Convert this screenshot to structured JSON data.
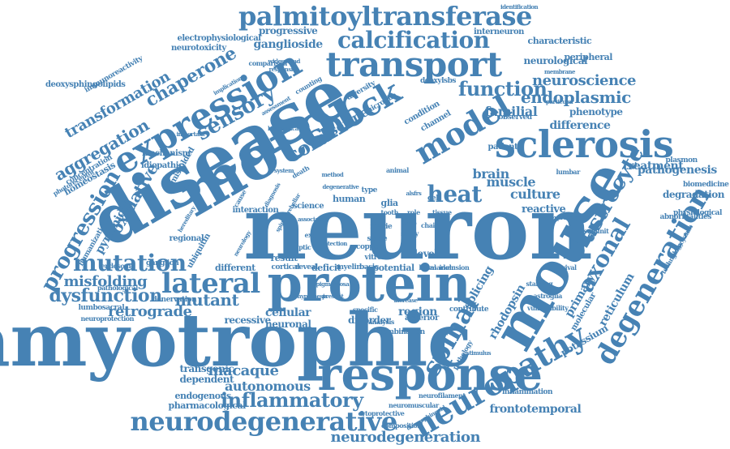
{
  "colors": {
    "word": "#4682b4",
    "background": "#ffffff"
  },
  "words": [
    "neuron",
    "amyotrophic",
    "disease",
    "motor",
    "protein",
    "mouse",
    "response",
    "transport",
    "sclerosis",
    "palmitoyltransferase",
    "expression",
    "calcification",
    "shock",
    "model",
    "neuropathy",
    "degeneration",
    "neurodegenerative",
    "spinal",
    "lateral",
    "mutation",
    "sensory",
    "progression",
    "heat",
    "axonal",
    "astrocyte",
    "function",
    "inflammatory",
    "chaperone",
    "mutant",
    "cord",
    "dysfunction",
    "endoplasmic",
    "aggregation",
    "retrograde",
    "misfolding",
    "macaque",
    "autonomous",
    "transformation",
    "oxidative",
    "neurodegeneration",
    "neuroscience",
    "culture",
    "muscle",
    "brain",
    "familial",
    "primary",
    "treatment",
    "pathogenesis",
    "difference",
    "phenotype",
    "ganglioside",
    "progressive",
    "reticulum",
    "serine",
    "splicing",
    "rhodopsin",
    "potassium",
    "pyramidal",
    "frontotemporal",
    "transgenic",
    "dependent",
    "endogenous",
    "pharmacological",
    "recessive",
    "cellular",
    "neuronal",
    "disorder",
    "region",
    "result",
    "level",
    "reactive",
    "degradation",
    "neurological",
    "characteristic",
    "interneuron",
    "electrophysiological",
    "neurotoxicity",
    "deoxysphingolipids",
    "immunoreactivity",
    "homeostasis",
    "concentration",
    "photoreceptor",
    "humanization",
    "lumbosacral",
    "neuroprotection",
    "ganglion",
    "endosome",
    "pathological",
    "denervation",
    "mechanism",
    "idiopathic",
    "misfolded",
    "regional",
    "ubiquitin",
    "different",
    "cortical",
    "reveal",
    "deficit",
    "myelin",
    "basic",
    "potential",
    "basal",
    "marker",
    "inclusion",
    "specific",
    "analysis",
    "anterior",
    "contribute",
    "combination",
    "neurofilament",
    "neuromuscular",
    "cytoprotective",
    "composition",
    "deoxysphingoid",
    "inflammation",
    "gallocyanin",
    "technology",
    "abnormalities",
    "physiological",
    "biomedicine",
    "plasmon",
    "lumbar",
    "patient",
    "condition",
    "channel",
    "deoxylsbs",
    "diversity",
    "microglia",
    "counting",
    "comparison",
    "implication",
    "assessment",
    "widespread",
    "responsive",
    "identification",
    "membrane",
    "particular",
    "observed",
    "peripheral",
    "molecular",
    "subunit",
    "vulnerability",
    "astroglia",
    "staining",
    "survival",
    "stimulus",
    "pathology",
    "interaction",
    "cause",
    "science",
    "human",
    "type",
    "glia",
    "cell",
    "tissue",
    "copper",
    "stage",
    "vitro",
    "study",
    "trap",
    "role",
    "chain",
    "tooth",
    "marie",
    "exon",
    "skiptic",
    "death",
    "animal",
    "method",
    "system",
    "diagnosis",
    "spinocerebellar",
    "hereditary",
    "overexpression",
    "important",
    "histological",
    "associated",
    "protection",
    "increase",
    "murine",
    "neurology",
    "pigmentosa",
    "present",
    "hypothesis",
    "degenerative",
    "alsfrs",
    "protect",
    "polymorphism"
  ]
}
